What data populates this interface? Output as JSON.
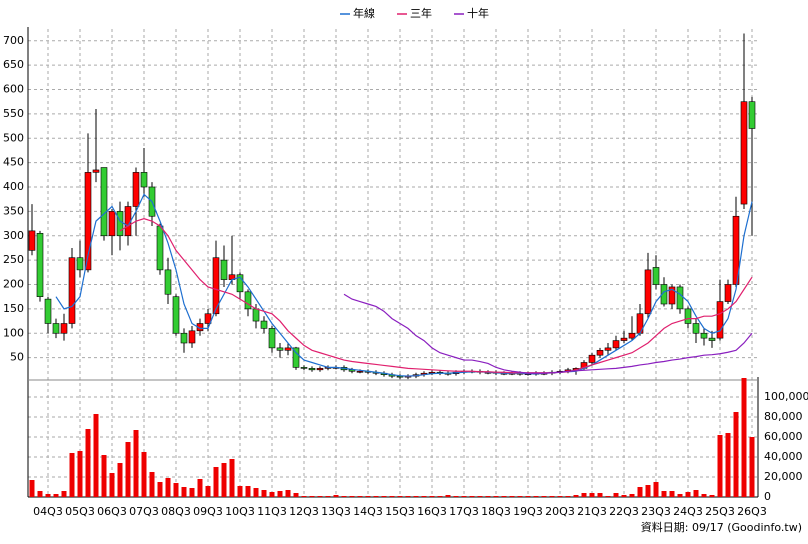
{
  "chart_data": {
    "type": "candlestick",
    "categories": [
      null,
      null,
      "04Q3",
      null,
      null,
      null,
      "05Q3",
      null,
      null,
      null,
      "06Q3",
      null,
      null,
      null,
      "07Q3",
      null,
      null,
      null,
      "08Q3",
      null,
      null,
      null,
      "09Q3",
      null,
      null,
      null,
      "10Q3",
      null,
      null,
      null,
      "11Q3",
      null,
      null,
      null,
      "12Q3",
      null,
      null,
      null,
      "13Q3",
      null,
      null,
      null,
      "14Q3",
      null,
      null,
      null,
      "15Q3",
      null,
      null,
      null,
      "16Q3",
      null,
      null,
      null,
      "17Q3",
      null,
      null,
      null,
      "18Q3",
      null,
      null,
      null,
      "19Q3",
      null,
      null,
      null,
      "20Q3",
      null,
      null,
      null,
      "21Q3",
      null,
      null,
      null,
      "22Q3",
      null,
      null,
      null,
      "23Q3",
      null,
      null,
      null,
      "24Q3",
      null,
      null,
      null,
      "25Q3",
      null,
      null,
      null,
      "26Q3"
    ],
    "open": [
      270,
      305,
      170,
      120,
      100,
      120,
      255,
      230,
      430,
      440,
      300,
      350,
      300,
      360,
      430,
      400,
      320,
      230,
      175,
      100,
      80,
      105,
      120,
      140,
      250,
      210,
      220,
      185,
      150,
      125,
      110,
      70,
      65,
      70,
      30,
      28,
      25,
      28,
      30,
      30,
      25,
      22,
      22,
      20,
      18,
      15,
      12,
      10,
      12,
      15,
      18,
      20,
      18,
      17,
      20,
      22,
      22,
      20,
      20,
      18,
      18,
      18,
      17,
      17,
      18,
      18,
      20,
      22,
      25,
      28,
      40,
      55,
      65,
      70,
      85,
      90,
      100,
      140,
      235,
      200,
      160,
      195,
      150,
      120,
      100,
      90,
      90,
      165,
      200,
      365,
      575
    ],
    "high": [
      365,
      310,
      175,
      130,
      140,
      275,
      290,
      510,
      560,
      440,
      355,
      370,
      370,
      440,
      480,
      410,
      325,
      255,
      180,
      110,
      115,
      130,
      150,
      290,
      280,
      300,
      225,
      190,
      160,
      135,
      115,
      80,
      80,
      72,
      34,
      32,
      32,
      34,
      34,
      34,
      29,
      26,
      26,
      24,
      22,
      19,
      16,
      16,
      19,
      22,
      24,
      24,
      22,
      24,
      26,
      26,
      26,
      24,
      24,
      22,
      22,
      22,
      21,
      22,
      22,
      24,
      26,
      29,
      30,
      45,
      60,
      70,
      80,
      95,
      105,
      135,
      160,
      265,
      260,
      215,
      200,
      200,
      155,
      130,
      110,
      105,
      210,
      210,
      380,
      715,
      585
    ],
    "low": [
      260,
      165,
      100,
      90,
      85,
      110,
      215,
      225,
      410,
      290,
      260,
      270,
      280,
      300,
      380,
      320,
      220,
      160,
      95,
      60,
      70,
      95,
      105,
      135,
      195,
      200,
      170,
      135,
      110,
      100,
      60,
      50,
      55,
      25,
      24,
      21,
      21,
      24,
      26,
      21,
      18,
      18,
      16,
      14,
      11,
      8,
      6,
      6,
      8,
      11,
      14,
      14,
      13,
      13,
      16,
      18,
      16,
      16,
      14,
      14,
      14,
      13,
      13,
      13,
      14,
      14,
      16,
      18,
      15,
      25,
      35,
      50,
      55,
      65,
      80,
      85,
      95,
      130,
      190,
      155,
      150,
      140,
      110,
      80,
      75,
      70,
      85,
      160,
      195,
      355,
      300
    ],
    "close": [
      310,
      175,
      120,
      100,
      120,
      255,
      230,
      430,
      435,
      300,
      350,
      300,
      360,
      430,
      400,
      340,
      230,
      180,
      100,
      80,
      105,
      120,
      140,
      255,
      210,
      220,
      185,
      150,
      125,
      110,
      70,
      65,
      70,
      30,
      28,
      25,
      28,
      30,
      30,
      25,
      22,
      22,
      20,
      18,
      15,
      12,
      10,
      12,
      15,
      18,
      20,
      18,
      17,
      20,
      22,
      22,
      20,
      20,
      18,
      18,
      18,
      17,
      17,
      18,
      18,
      20,
      22,
      25,
      28,
      40,
      55,
      65,
      70,
      85,
      90,
      100,
      140,
      230,
      200,
      160,
      195,
      150,
      120,
      100,
      90,
      85,
      165,
      200,
      340,
      575,
      520
    ],
    "volume": [
      17000,
      6000,
      3000,
      3000,
      6000,
      44000,
      46000,
      68000,
      83000,
      42000,
      24000,
      34000,
      55000,
      67000,
      45000,
      25000,
      15000,
      19000,
      14000,
      10000,
      9000,
      18000,
      11000,
      30000,
      34000,
      38000,
      11000,
      11000,
      9000,
      7000,
      5000,
      6000,
      7000,
      4000,
      1000,
      1000,
      1000,
      1000,
      2000,
      1000,
      1000,
      1000,
      1000,
      1000,
      1000,
      1000,
      1000,
      1000,
      1000,
      1000,
      1000,
      1000,
      2000,
      1000,
      1000,
      1000,
      1000,
      1000,
      1000,
      1000,
      1000,
      1000,
      1000,
      1000,
      1000,
      1000,
      1000,
      1000,
      2000,
      4000,
      4000,
      4000,
      1000,
      4000,
      2000,
      3000,
      10000,
      12000,
      15000,
      6000,
      6000,
      3000,
      5000,
      7000,
      3000,
      2000,
      62000,
      64000,
      85000,
      119000,
      60000
    ],
    "up_color": "#ff0000",
    "down_color": "#33cc33",
    "volume_color": "#ee0000",
    "lines": [
      {
        "name": "年線",
        "color": "#1e6fd0",
        "values": [
          null,
          null,
          null,
          175,
          150,
          155,
          175,
          260,
          330,
          345,
          360,
          330,
          320,
          350,
          385,
          370,
          330,
          285,
          230,
          160,
          120,
          110,
          110,
          150,
          180,
          210,
          215,
          195,
          170,
          145,
          120,
          100,
          80,
          60,
          45,
          40,
          35,
          30,
          30,
          28,
          26,
          24,
          22,
          20,
          18,
          15,
          13,
          12,
          13,
          15,
          17,
          18,
          18,
          19,
          20,
          21,
          21,
          20,
          19,
          18,
          18,
          18,
          17,
          17,
          18,
          19,
          20,
          21,
          22,
          28,
          35,
          45,
          55,
          65,
          75,
          85,
          100,
          130,
          165,
          185,
          190,
          180,
          165,
          135,
          110,
          100,
          105,
          130,
          190,
          300,
          370
        ]
      },
      {
        "name": "三年",
        "color": "#e0206e",
        "values": [
          null,
          null,
          null,
          null,
          null,
          null,
          null,
          null,
          null,
          null,
          null,
          310,
          320,
          330,
          335,
          330,
          320,
          300,
          270,
          250,
          230,
          210,
          195,
          190,
          185,
          180,
          170,
          160,
          150,
          145,
          140,
          125,
          105,
          90,
          75,
          65,
          60,
          55,
          50,
          45,
          42,
          40,
          38,
          36,
          34,
          32,
          30,
          28,
          27,
          26,
          25,
          24,
          23,
          22,
          22,
          22,
          21,
          21,
          20,
          20,
          19,
          19,
          19,
          19,
          19,
          19,
          20,
          21,
          25,
          30,
          35,
          40,
          45,
          50,
          55,
          60,
          70,
          80,
          95,
          110,
          120,
          125,
          130,
          130,
          135,
          135,
          140,
          150,
          165,
          190,
          215
        ]
      },
      {
        "name": "十年",
        "color": "#8a1fbf",
        "values": [
          null,
          null,
          null,
          null,
          null,
          null,
          null,
          null,
          null,
          null,
          null,
          null,
          null,
          null,
          null,
          null,
          null,
          null,
          null,
          null,
          null,
          null,
          null,
          null,
          null,
          null,
          null,
          null,
          null,
          null,
          null,
          null,
          null,
          null,
          null,
          null,
          null,
          null,
          null,
          180,
          170,
          165,
          160,
          155,
          145,
          130,
          120,
          110,
          95,
          85,
          70,
          60,
          55,
          50,
          45,
          45,
          42,
          38,
          30,
          25,
          22,
          20,
          18,
          18,
          18,
          19,
          20,
          22,
          23,
          24,
          25,
          26,
          27,
          28,
          30,
          32,
          35,
          37,
          40,
          42,
          45,
          47,
          50,
          52,
          55,
          56,
          58,
          61,
          65,
          80,
          100
        ]
      }
    ],
    "ylim": [
      0,
      720
    ],
    "yticks": [
      50,
      100,
      150,
      200,
      250,
      300,
      350,
      400,
      450,
      500,
      550,
      600,
      650,
      700
    ],
    "y2lim": [
      0,
      120000
    ],
    "y2ticks": [
      0,
      {
        "value": 20000,
        "label": "20,000"
      },
      {
        "value": 40000,
        "label": "40,000"
      },
      {
        "value": 60000,
        "label": "60,000"
      },
      {
        "value": 80000,
        "label": "80,000"
      },
      {
        "value": 100000,
        "label": "100,000"
      }
    ],
    "grid": true,
    "source": "資料日期: 09/17 (Goodinfo.tw)"
  }
}
